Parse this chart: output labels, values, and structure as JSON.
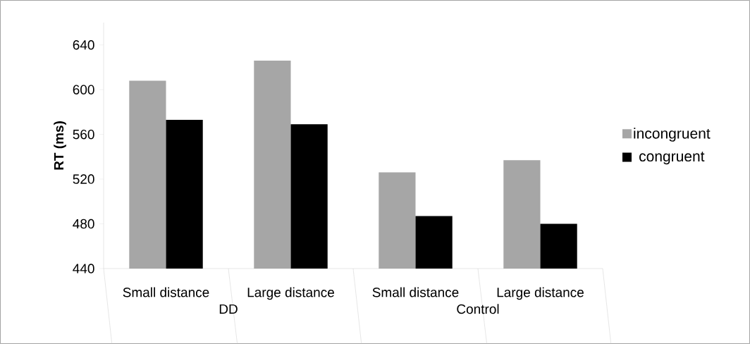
{
  "chart_data": {
    "type": "bar",
    "ylabel": "RT (ms)",
    "categories": [
      "Small distance",
      "Large distance",
      "Small distance",
      "Large distance"
    ],
    "series": [
      {
        "name": "incongruent",
        "color": "#a6a6a6",
        "values": [
          608,
          626,
          526,
          537
        ]
      },
      {
        "name": "congruent",
        "color": "#000000",
        "values": [
          573,
          569,
          487,
          480
        ]
      }
    ],
    "ylim": [
      440,
      660
    ],
    "yticks": [
      440,
      480,
      520,
      560,
      600,
      640
    ],
    "legend": "right",
    "annotations": [
      "DD",
      "Control"
    ]
  }
}
